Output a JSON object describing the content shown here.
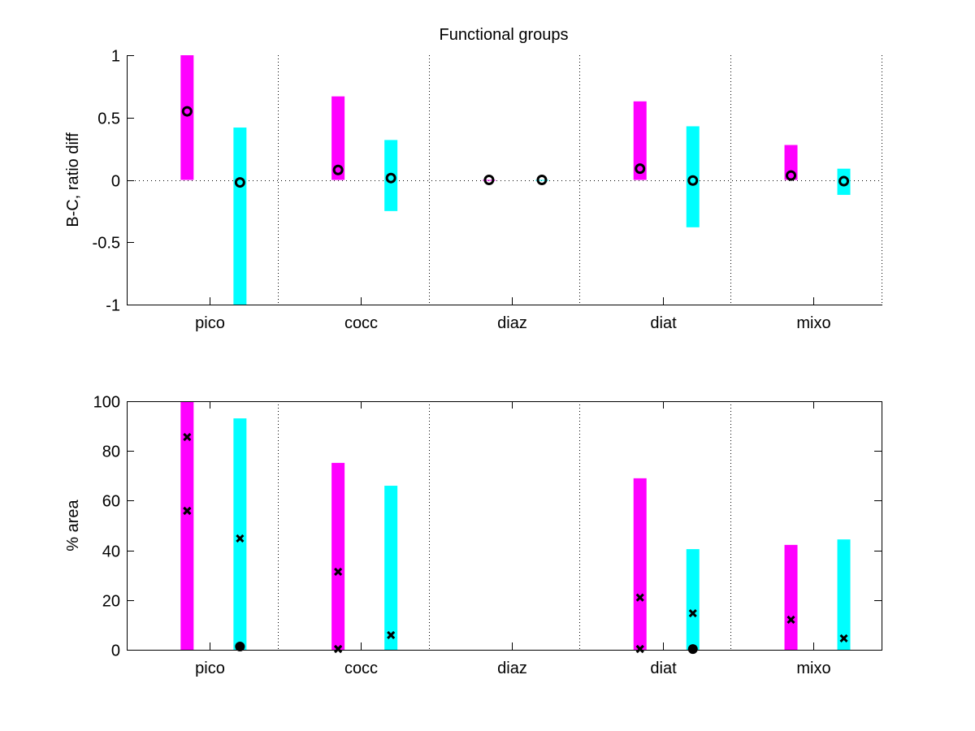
{
  "figure_title": "Functional groups",
  "colors": {
    "series_b": "#ff00ff",
    "series_c": "#00ffff",
    "marker": "#000000",
    "axis": "#000000"
  },
  "chart_data": [
    {
      "type": "bar",
      "subtype": "range-bars-with-markers",
      "title": "Functional groups",
      "xlabel": "",
      "ylabel": "B-C, ratio diff",
      "categories": [
        "pico",
        "cocc",
        "diaz",
        "diat",
        "mixo"
      ],
      "ylim": [
        -1,
        1
      ],
      "yticks": [
        -1,
        -0.5,
        0,
        0.5,
        1
      ],
      "ytick_labels": [
        "-1",
        "-0.5",
        "0",
        "0.5",
        "1"
      ],
      "grid": "dotted vertical separators between groups; dotted horizontal line at 0",
      "box": false,
      "series": [
        {
          "name": "magenta",
          "color": "#ff00ff",
          "range_low": [
            0,
            0,
            0,
            0,
            0
          ],
          "range_high": [
            1.0,
            0.67,
            0,
            0.63,
            0.28
          ],
          "markers": [
            [
              0.55
            ],
            [
              0.08
            ],
            [
              0.0
            ],
            [
              0.09
            ],
            [
              0.035
            ]
          ],
          "marker_style": "open-circle"
        },
        {
          "name": "cyan",
          "color": "#00ffff",
          "range_low": [
            -1.0,
            -0.25,
            0,
            -0.38,
            -0.12
          ],
          "range_high": [
            0.42,
            0.32,
            0,
            0.43,
            0.09
          ],
          "markers": [
            [
              -0.02
            ],
            [
              0.015
            ],
            [
              0.0
            ],
            [
              -0.005
            ],
            [
              -0.01
            ]
          ],
          "marker_style": "open-circle"
        }
      ]
    },
    {
      "type": "bar",
      "subtype": "range-bars-with-markers",
      "title": "",
      "xlabel": "",
      "ylabel": "% area",
      "categories": [
        "pico",
        "cocc",
        "diaz",
        "diat",
        "mixo"
      ],
      "ylim": [
        0,
        100
      ],
      "yticks": [
        0,
        20,
        40,
        60,
        80,
        100
      ],
      "ytick_labels": [
        "0",
        "20",
        "40",
        "60",
        "80",
        "100"
      ],
      "grid": "dotted vertical separators between groups",
      "box": true,
      "series": [
        {
          "name": "magenta",
          "color": "#ff00ff",
          "range_low": [
            0,
            0,
            null,
            0,
            0
          ],
          "range_high": [
            100,
            75.2,
            null,
            69,
            42.2
          ],
          "markers": [
            [
              85.6,
              55.9,
              55.9
            ],
            [
              31.4,
              0.3,
              0.3
            ],
            [],
            [
              21,
              0.3,
              0.3
            ],
            [
              12.1
            ]
          ],
          "marker_style": "x"
        },
        {
          "name": "cyan",
          "color": "#00ffff",
          "range_low": [
            0,
            0,
            null,
            0,
            0
          ],
          "range_high": [
            93.1,
            66,
            null,
            40.5,
            44.4
          ],
          "markers": [
            [
              44.8
            ],
            [
              5.9
            ],
            [],
            [
              14.7
            ],
            [
              4.6
            ]
          ],
          "dots": [
            [
              1.3
            ],
            [],
            [],
            [
              0.3
            ],
            []
          ],
          "marker_style": "x"
        }
      ]
    }
  ]
}
